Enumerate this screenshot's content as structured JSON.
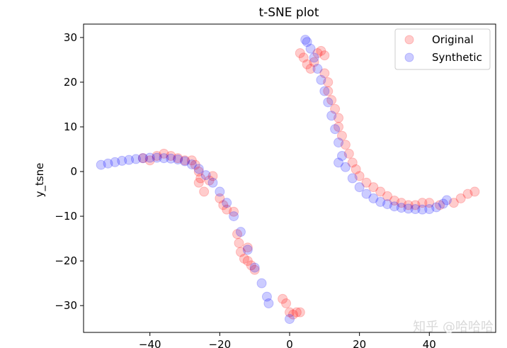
{
  "chart_data": {
    "type": "scatter",
    "title": "t-SNE plot",
    "xlabel": "",
    "ylabel": "y_tsne",
    "xlim": [
      -59,
      59
    ],
    "ylim": [
      -36,
      33
    ],
    "xticks": [
      -40,
      -20,
      0,
      20,
      40
    ],
    "yticks": [
      -30,
      -20,
      -10,
      0,
      10,
      20,
      30
    ],
    "xtick_labels": [
      "−40",
      "−20",
      "0",
      "20",
      "40"
    ],
    "ytick_labels": [
      "−30",
      "−20",
      "−10",
      "0",
      "10",
      "20",
      "30"
    ],
    "grid": false,
    "legend_position": "upper right",
    "series": [
      {
        "name": "Original",
        "color": "#ff0000",
        "alpha": 0.2,
        "points": [
          [
            -42,
            3
          ],
          [
            -40,
            2.5
          ],
          [
            -38,
            3.5
          ],
          [
            -36,
            4
          ],
          [
            -34,
            3.5
          ],
          [
            -32,
            3
          ],
          [
            -30,
            2.5
          ],
          [
            -28,
            2.5
          ],
          [
            -27,
            1.5
          ],
          [
            -26,
            0
          ],
          [
            -25.5,
            -1.5
          ],
          [
            -26,
            -2.5
          ],
          [
            -24.5,
            -4.5
          ],
          [
            -23,
            -2
          ],
          [
            -22,
            -1
          ],
          [
            -20,
            -6
          ],
          [
            -19,
            -7.5
          ],
          [
            -18,
            -8.5
          ],
          [
            -16,
            -9
          ],
          [
            -15,
            -14
          ],
          [
            -14.5,
            -16
          ],
          [
            -14,
            -18
          ],
          [
            -13,
            -19.5
          ],
          [
            -12,
            -20
          ],
          [
            -11,
            -21
          ],
          [
            -10,
            -22
          ],
          [
            -12,
            -17
          ],
          [
            -2,
            -28.5
          ],
          [
            -1,
            -29.5
          ],
          [
            0,
            -31.5
          ],
          [
            1,
            -32
          ],
          [
            2,
            -31.5
          ],
          [
            3,
            -31.5
          ],
          [
            3,
            26.5
          ],
          [
            4,
            25.5
          ],
          [
            5,
            24
          ],
          [
            6,
            23
          ],
          [
            7,
            24.5
          ],
          [
            8,
            26.5
          ],
          [
            9,
            27
          ],
          [
            10,
            26
          ],
          [
            10,
            22
          ],
          [
            11,
            20
          ],
          [
            11,
            18
          ],
          [
            12,
            16
          ],
          [
            13,
            14
          ],
          [
            14,
            12
          ],
          [
            14,
            10
          ],
          [
            15,
            8
          ],
          [
            16,
            6
          ],
          [
            17,
            4
          ],
          [
            18,
            2
          ],
          [
            19,
            0.5
          ],
          [
            20,
            -1
          ],
          [
            22,
            -2.5
          ],
          [
            24,
            -3.5
          ],
          [
            26,
            -4.5
          ],
          [
            28,
            -5.5
          ],
          [
            30,
            -6.5
          ],
          [
            32,
            -7
          ],
          [
            34,
            -7.5
          ],
          [
            36,
            -7.5
          ],
          [
            38,
            -7
          ],
          [
            40,
            -7
          ],
          [
            43,
            -7.5
          ],
          [
            47,
            -7
          ],
          [
            49,
            -6
          ],
          [
            51,
            -5
          ],
          [
            53,
            -4.5
          ]
        ]
      },
      {
        "name": "Synthetic",
        "color": "#0000ff",
        "alpha": 0.2,
        "points": [
          [
            -54,
            1.5
          ],
          [
            -52,
            1.8
          ],
          [
            -50,
            2.1
          ],
          [
            -48,
            2.4
          ],
          [
            -46,
            2.6
          ],
          [
            -44,
            2.8
          ],
          [
            -42,
            3
          ],
          [
            -40,
            3.1
          ],
          [
            -38,
            3.1
          ],
          [
            -36,
            3
          ],
          [
            -34,
            2.9
          ],
          [
            -32,
            2.7
          ],
          [
            -30,
            2.3
          ],
          [
            -28,
            1.6
          ],
          [
            -26,
            0.6
          ],
          [
            -24,
            -0.8
          ],
          [
            -22,
            -2.5
          ],
          [
            -20,
            -4.5
          ],
          [
            -18,
            -7
          ],
          [
            -16,
            -10
          ],
          [
            -14,
            -13.5
          ],
          [
            -12,
            -17.5
          ],
          [
            -10,
            -21.5
          ],
          [
            -8,
            -25
          ],
          [
            -6.5,
            -28
          ],
          [
            -6,
            -29.5
          ],
          [
            0,
            -33
          ],
          [
            4.5,
            29.5
          ],
          [
            5,
            29
          ],
          [
            6,
            27.5
          ],
          [
            7,
            25.5
          ],
          [
            8,
            23
          ],
          [
            9,
            20.5
          ],
          [
            10,
            18
          ],
          [
            11,
            15.5
          ],
          [
            12,
            12.5
          ],
          [
            13,
            9.5
          ],
          [
            14,
            6.5
          ],
          [
            15,
            3.5
          ],
          [
            16,
            1
          ],
          [
            18,
            -1.5
          ],
          [
            20,
            -3.5
          ],
          [
            22,
            -5
          ],
          [
            24,
            -6
          ],
          [
            26,
            -6.8
          ],
          [
            28,
            -7.3
          ],
          [
            30,
            -7.8
          ],
          [
            32,
            -8.1
          ],
          [
            34,
            -8.3
          ],
          [
            36,
            -8.4
          ],
          [
            38,
            -8.5
          ],
          [
            40,
            -8.4
          ],
          [
            42,
            -8
          ],
          [
            44,
            -7.2
          ],
          [
            45,
            -6.4
          ],
          [
            14,
            2
          ]
        ]
      }
    ]
  },
  "watermark": "知乎 @哈哈哈"
}
